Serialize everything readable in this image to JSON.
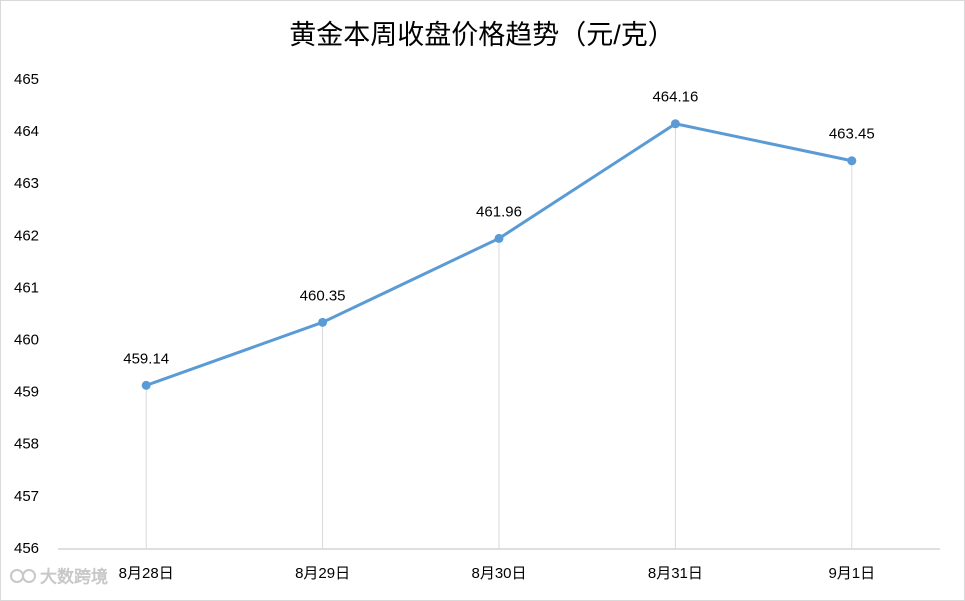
{
  "chart_data": {
    "type": "line",
    "title": "黄金本周收盘价格趋势（元/克）",
    "categories": [
      "8月28日",
      "8月29日",
      "8月30日",
      "8月31日",
      "9月1日"
    ],
    "values": [
      459.14,
      460.35,
      461.96,
      464.16,
      463.45
    ],
    "color": "#5b9bd5",
    "drop_lines": true,
    "ylim": [
      456,
      465
    ],
    "yticks": [
      456,
      457,
      458,
      459,
      460,
      461,
      462,
      463,
      464,
      465
    ],
    "grid": false,
    "watermark": "大数跨境"
  }
}
